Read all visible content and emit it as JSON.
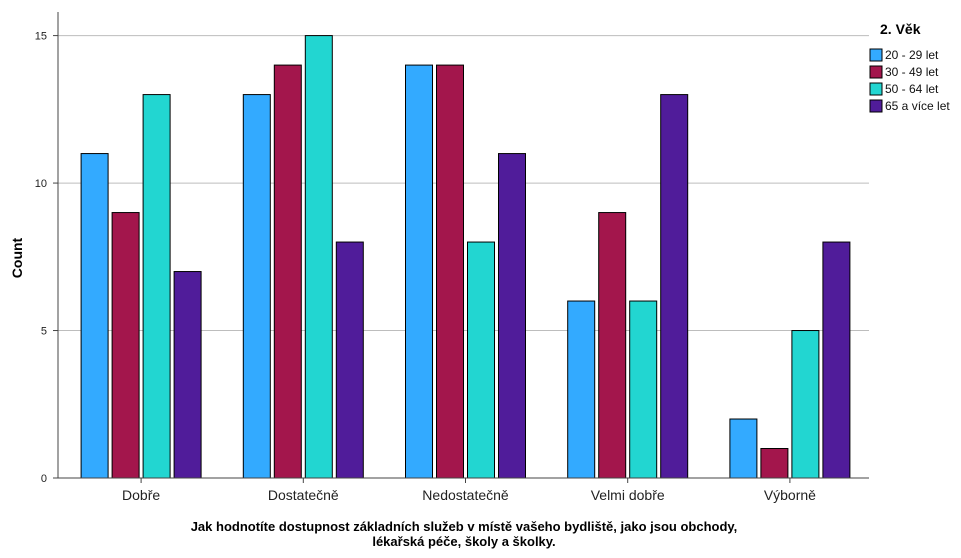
{
  "chart_data": {
    "type": "bar",
    "categories": [
      "Dobře",
      "Dostatečně",
      "Nedostatečně",
      "Velmi dobře",
      "Výborně"
    ],
    "series": [
      {
        "name": "20 - 29 let",
        "values": [
          11,
          13,
          14,
          6,
          2
        ],
        "color": "#33aaff"
      },
      {
        "name": "30 - 49 let",
        "values": [
          9,
          14,
          14,
          9,
          1
        ],
        "color": "#a3164c"
      },
      {
        "name": "50 - 64 let",
        "values": [
          13,
          15,
          8,
          6,
          5
        ],
        "color": "#22d6d1"
      },
      {
        "name": "65 a více let",
        "values": [
          7,
          8,
          11,
          13,
          8
        ],
        "color": "#501c9a"
      }
    ],
    "xlabel_lines": [
      "Jak hodnotíte dostupnost základních služeb v místě vašeho bydliště, jako jsou obchody,",
      "lékařská péče, školy a školky."
    ],
    "ylabel": "Count",
    "yticks": [
      0,
      5,
      10,
      15
    ],
    "ylim": [
      0,
      15.8
    ],
    "grid": true,
    "legend": {
      "title": "2. Věk",
      "placement": "right"
    }
  }
}
